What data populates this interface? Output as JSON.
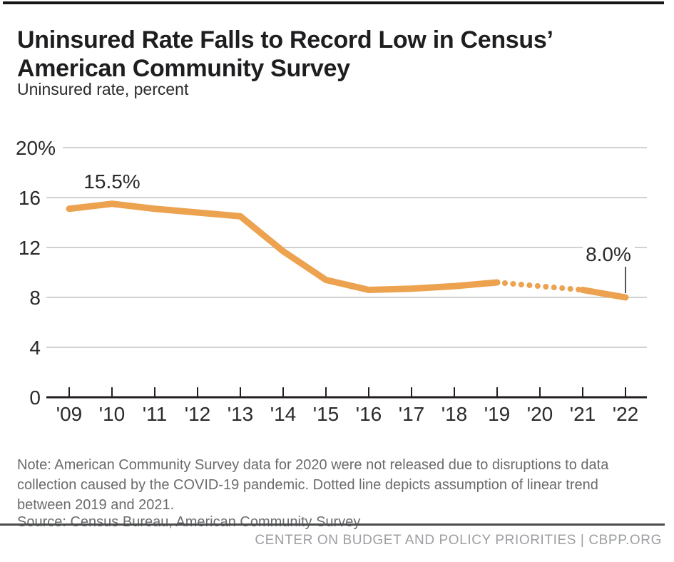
{
  "header": {
    "title_line1": "Uninsured Rate Falls to Record Low in Census’",
    "title_line2": "American Community Survey",
    "subtitle": "Uninsured rate, percent"
  },
  "chart_data": {
    "type": "line",
    "title": "Uninsured Rate Falls to Record Low in Census’ American Community Survey",
    "ylabel": "Uninsured rate, percent",
    "ylim": [
      0,
      20
    ],
    "grid": "horizontal",
    "legend": "none",
    "line_color": "#ECA24F",
    "grid_color": "#C2C2C2",
    "axis_color": "#231F20",
    "label_color": "#2A2A2C",
    "leader_color": "#55565A",
    "y_gridlines": [
      20,
      16,
      12,
      8,
      4
    ],
    "y_ticks": [
      {
        "label": "20%",
        "value": 20
      },
      {
        "label": "16",
        "value": 16
      },
      {
        "label": "12",
        "value": 12
      },
      {
        "label": "8",
        "value": 8
      },
      {
        "label": "4",
        "value": 4
      },
      {
        "label": "0",
        "value": 0
      }
    ],
    "x_ticks": [
      {
        "label": "'09",
        "year": 2009
      },
      {
        "label": "'10",
        "year": 2010
      },
      {
        "label": "'11",
        "year": 2011
      },
      {
        "label": "'12",
        "year": 2012
      },
      {
        "label": "'13",
        "year": 2013
      },
      {
        "label": "'14",
        "year": 2014
      },
      {
        "label": "'15",
        "year": 2015
      },
      {
        "label": "'16",
        "year": 2016
      },
      {
        "label": "'17",
        "year": 2017
      },
      {
        "label": "'18",
        "year": 2018
      },
      {
        "label": "'19",
        "year": 2019
      },
      {
        "label": "'20",
        "year": 2020
      },
      {
        "label": "'21",
        "year": 2021
      },
      {
        "label": "'22",
        "year": 2022
      }
    ],
    "series": [
      {
        "name": "Uninsured rate (actual, solid)",
        "style": "solid",
        "points": [
          [
            2009,
            15.1
          ],
          [
            2010,
            15.5
          ],
          [
            2011,
            15.1
          ],
          [
            2012,
            14.8
          ],
          [
            2013,
            14.5
          ],
          [
            2014,
            11.7
          ],
          [
            2015,
            9.4
          ],
          [
            2016,
            8.6
          ],
          [
            2017,
            8.7
          ],
          [
            2018,
            8.9
          ],
          [
            2019,
            9.2
          ]
        ]
      },
      {
        "name": "Assumed linear trend between 2019 and 2021 (dotted, 2020 not released)",
        "style": "dotted",
        "points": [
          [
            2019,
            9.2
          ],
          [
            2020,
            8.9
          ],
          [
            2021,
            8.6
          ]
        ]
      },
      {
        "name": "Uninsured rate (actual, solid)",
        "style": "solid",
        "points": [
          [
            2021,
            8.6
          ],
          [
            2022,
            8.0
          ]
        ]
      }
    ],
    "annotations": [
      {
        "text": "15.5%",
        "year": 2010,
        "value": 15.5,
        "position": "above"
      },
      {
        "text": "8.0%",
        "year": 2022,
        "value": 8.0,
        "position": "callout",
        "leader_line": true
      }
    ]
  },
  "note": "Note: American Community Survey data for 2020 were not released due to disruptions to data collection caused by the COVID-19 pandemic. Dotted line depicts assumption of linear trend between 2019 and 2021.",
  "source": "Source: Census Bureau, American Community Survey",
  "footer": "CENTER ON BUDGET AND POLICY PRIORITIES | CBPP.ORG"
}
